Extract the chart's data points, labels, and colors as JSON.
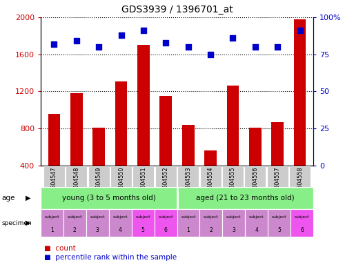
{
  "title": "GDS3939 / 1396701_at",
  "samples": [
    "GSM604547",
    "GSM604548",
    "GSM604549",
    "GSM604550",
    "GSM604551",
    "GSM604552",
    "GSM604553",
    "GSM604554",
    "GSM604555",
    "GSM604556",
    "GSM604557",
    "GSM604558"
  ],
  "counts": [
    960,
    1180,
    810,
    1310,
    1700,
    1150,
    840,
    560,
    1260,
    810,
    870,
    1980
  ],
  "percentiles": [
    82,
    84,
    80,
    88,
    91,
    83,
    80,
    75,
    86,
    80,
    80,
    91
  ],
  "ylim_left": [
    400,
    2000
  ],
  "ylim_right": [
    0,
    100
  ],
  "yticks_left": [
    400,
    800,
    1200,
    1600,
    2000
  ],
  "yticks_right": [
    0,
    25,
    50,
    75,
    100
  ],
  "ytick_labels_right": [
    "0",
    "25",
    "50",
    "75",
    "100%"
  ],
  "bar_color": "#cc0000",
  "dot_color": "#0000cc",
  "age_group_labels": [
    "young (3 to 5 months old)",
    "aged (21 to 23 months old)"
  ],
  "age_group_color": "#88ee88",
  "specimen_colors": [
    "#cc88cc",
    "#cc88cc",
    "#cc88cc",
    "#cc88cc",
    "#ee55ee",
    "#ee55ee",
    "#cc88cc",
    "#cc88cc",
    "#cc88cc",
    "#cc88cc",
    "#cc88cc",
    "#ee55ee"
  ],
  "specimen_numbers": [
    "1",
    "2",
    "3",
    "4",
    "5",
    "6",
    "1",
    "2",
    "3",
    "4",
    "5",
    "6"
  ],
  "xtick_bg_color": "#cccccc",
  "background_color": "#ffffff",
  "tick_color_left": "#cc0000",
  "tick_color_right": "#0000cc",
  "legend_count_color": "#cc0000",
  "legend_pct_color": "#0000cc"
}
